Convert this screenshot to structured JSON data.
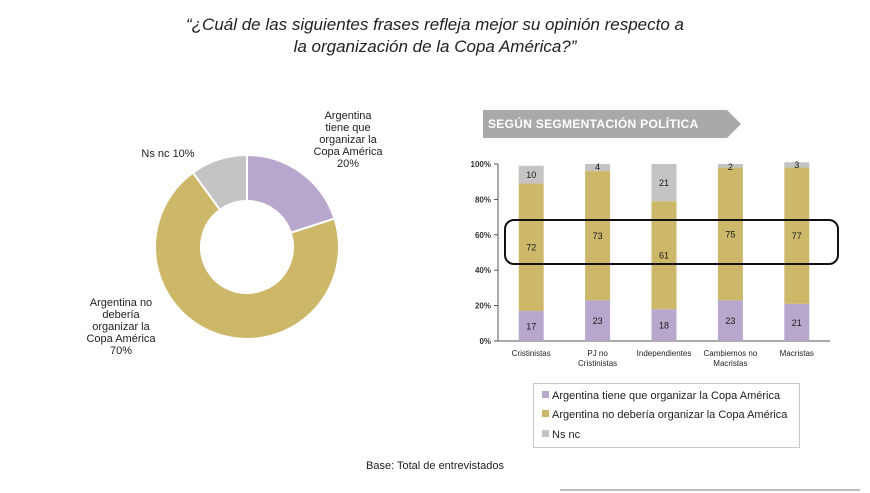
{
  "title": {
    "line1": "“¿Cuál de las siguientes frases refleja mejor su opinión respecto a",
    "line2": "la organización de la Copa América?”"
  },
  "base_note": "Base: Total de entrevistados",
  "colors": {
    "tiene": "#b8a7cc",
    "no_deberia": "#cdb86a",
    "nsnc": "#c4c4c4",
    "banner": "#a9a9a9"
  },
  "chart_data": [
    {
      "type": "pie",
      "donut": true,
      "slices": [
        {
          "key": "tiene",
          "label": "Argentina\ntiene que\norganizar la\nCopa América\n20%",
          "value": 20
        },
        {
          "key": "no_deberia",
          "label": "Argentina no\ndebería\norganizar la\nCopa América\n70%",
          "value": 70
        },
        {
          "key": "nsnc",
          "label": "Ns nc 10%",
          "value": 10
        }
      ]
    },
    {
      "type": "bar",
      "stacked": true,
      "title": "SEGÚN SEGMENTACIÓN POLÍTICA",
      "categories": [
        "Cristinistas",
        "PJ no\nCristinistas",
        "Independientes",
        "Cambiemos no\nMacristas",
        "Macristas"
      ],
      "ylim": [
        0,
        100
      ],
      "yticks": [
        "0%",
        "20%",
        "40%",
        "60%",
        "80%",
        "100%"
      ],
      "series": [
        {
          "key": "tiene",
          "name": "Argentina tiene que organizar la Copa América",
          "values": [
            17,
            23,
            18,
            23,
            21
          ]
        },
        {
          "key": "no_deberia",
          "name": "Argentina no debería organizar la Copa América",
          "values": [
            72,
            73,
            61,
            75,
            77
          ]
        },
        {
          "key": "nsnc",
          "name": "Ns nc",
          "values": [
            10,
            4,
            21,
            2,
            3
          ]
        }
      ],
      "legend_position": "bottom"
    }
  ]
}
